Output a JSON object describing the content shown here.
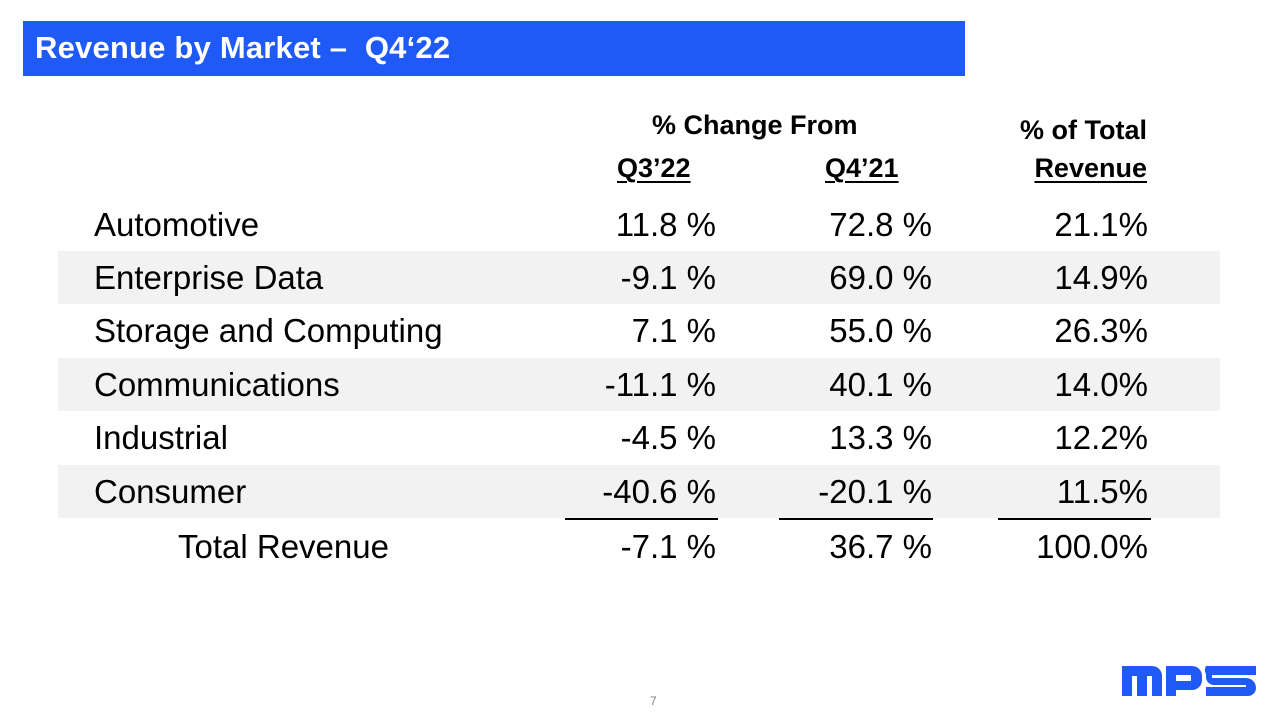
{
  "title": "Revenue by Market –  Q4‘22",
  "header": {
    "group_label": "% Change From",
    "col1": "Q3’22",
    "col2": "Q4’21",
    "col3_line1": "% of Total",
    "col3_line2": "Revenue"
  },
  "rows": [
    {
      "market": "Automotive",
      "q3_change": "11.8 %",
      "q4_change": "72.8 %",
      "pct_total": "21.1%"
    },
    {
      "market": "Enterprise Data",
      "q3_change": "-9.1 %",
      "q4_change": "69.0 %",
      "pct_total": "14.9%"
    },
    {
      "market": "Storage and Computing",
      "q3_change": "7.1 %",
      "q4_change": "55.0 %",
      "pct_total": "26.3%"
    },
    {
      "market": "Communications",
      "q3_change": "-11.1 %",
      "q4_change": "40.1 %",
      "pct_total": "14.0%"
    },
    {
      "market": "Industrial",
      "q3_change": "-4.5 %",
      "q4_change": "13.3 %",
      "pct_total": "12.2%"
    },
    {
      "market": "Consumer",
      "q3_change": "-40.6 %",
      "q4_change": "-20.1 %",
      "pct_total": "11.5%"
    }
  ],
  "total": {
    "label": "Total Revenue",
    "q3_change": "-7.1 %",
    "q4_change": "36.7 %",
    "pct_total": "100.0%"
  },
  "page_number": "7",
  "logo": {
    "text": "MPS",
    "icon": "mps-logo-icon",
    "color": "#1f5af6"
  },
  "colors": {
    "accent": "#1f5af6",
    "row_shade": "#f2f2f2"
  }
}
